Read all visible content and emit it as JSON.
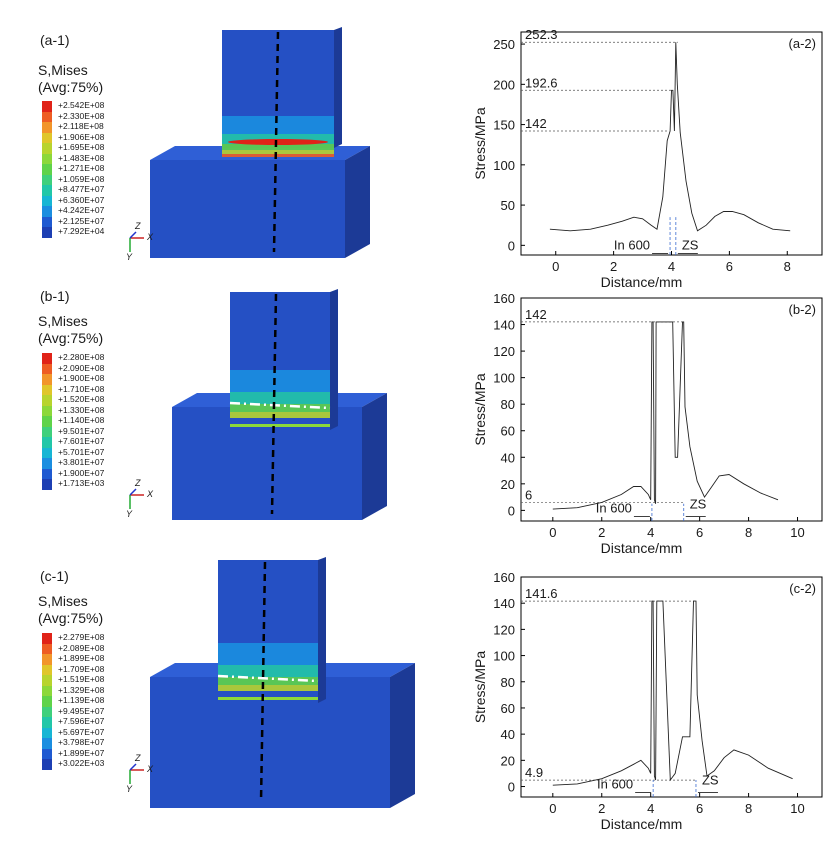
{
  "colors": {
    "contour": [
      "#1d3fb3",
      "#1f5ad1",
      "#1b8ee0",
      "#17b6d4",
      "#22c7a8",
      "#3fd07c",
      "#5fd34a",
      "#8cd83a",
      "#b8d42e",
      "#e0c62a",
      "#f2952a",
      "#ee5d23",
      "#e02318"
    ],
    "block_blue": "#2550c4",
    "block_side": "#1c3a96",
    "block_top": "#2f5fd6"
  },
  "fem_panels": [
    {
      "tag": "(a-1)",
      "title_line1": "S,Mises",
      "title_line2": "(Avg:75%)",
      "legend": [
        "+2.542E+08",
        "+2.330E+08",
        "+2.118E+08",
        "+1.906E+08",
        "+1.695E+08",
        "+1.483E+08",
        "+1.271E+08",
        "+1.059E+08",
        "+8.477E+07",
        "+6.360E+07",
        "+4.242E+07",
        "+2.125E+07",
        "+7.292E+04"
      ],
      "axes": {
        "z": "Z",
        "x": "X",
        "y": "Y"
      }
    },
    {
      "tag": "(b-1)",
      "title_line1": "S,Mises",
      "title_line2": "(Avg:75%)",
      "legend": [
        "+2.280E+08",
        "+2.090E+08",
        "+1.900E+08",
        "+1.710E+08",
        "+1.520E+08",
        "+1.330E+08",
        "+1.140E+08",
        "+9.501E+07",
        "+7.601E+07",
        "+5.701E+07",
        "+3.801E+07",
        "+1.900E+07",
        "+1.713E+03"
      ],
      "axes": {
        "z": "Z",
        "x": "X",
        "y": "Y"
      }
    },
    {
      "tag": "(c-1)",
      "title_line1": "S,Mises",
      "title_line2": "(Avg:75%)",
      "legend": [
        "+2.279E+08",
        "+2.089E+08",
        "+1.899E+08",
        "+1.709E+08",
        "+1.519E+08",
        "+1.329E+08",
        "+1.139E+08",
        "+9.495E+07",
        "+7.596E+07",
        "+5.697E+07",
        "+3.798E+07",
        "+1.899E+07",
        "+3.022E+03"
      ],
      "axes": {
        "z": "Z",
        "x": "X",
        "y": "Y"
      }
    }
  ],
  "chart_data": [
    {
      "type": "line",
      "tag": "(a-2)",
      "xlabel": "Distance/mm",
      "ylabel": "Stress/MPa",
      "xlim": [
        -1.2,
        9.2
      ],
      "ylim": [
        -12,
        265
      ],
      "xticks": [
        0,
        2,
        4,
        6,
        8
      ],
      "yticks": [
        0,
        50,
        100,
        150,
        200,
        250
      ],
      "annotations": [
        {
          "text": "252.3",
          "value": 252.3
        },
        {
          "text": "192.6",
          "value": 192.6
        },
        {
          "text": "142",
          "value": 142
        }
      ],
      "region_labels": {
        "left": "In 600",
        "right": "ZS"
      },
      "divider_x": [
        3.95,
        4.15
      ],
      "x": [
        -0.2,
        0.5,
        1.2,
        1.8,
        2.3,
        2.7,
        3.0,
        3.3,
        3.5,
        3.7,
        3.85,
        3.95,
        4.0,
        4.05,
        4.1,
        4.15,
        4.2,
        4.3,
        4.5,
        4.7,
        4.9,
        5.2,
        5.5,
        5.8,
        6.1,
        6.5,
        7.0,
        7.5,
        8.1
      ],
      "y": [
        20,
        18,
        20,
        25,
        30,
        35,
        33,
        25,
        20,
        60,
        130,
        142,
        192.6,
        192.6,
        142,
        252.3,
        200,
        140,
        80,
        40,
        18,
        25,
        36,
        42,
        42,
        38,
        28,
        20,
        18
      ]
    },
    {
      "type": "line",
      "tag": "(b-2)",
      "xlabel": "Distance/mm",
      "ylabel": "Stress/MPa",
      "xlim": [
        -1.3,
        11
      ],
      "ylim": [
        -8,
        160
      ],
      "xticks": [
        0,
        2,
        4,
        6,
        8,
        10
      ],
      "yticks": [
        0,
        20,
        40,
        60,
        80,
        100,
        120,
        140,
        160
      ],
      "annotations": [
        {
          "text": "142",
          "value": 142
        },
        {
          "text": "6",
          "value": 6
        }
      ],
      "region_labels": {
        "left": "In 600",
        "right": "ZS"
      },
      "divider_x": [
        4.05,
        5.35
      ],
      "x": [
        0,
        1,
        2,
        2.8,
        3.3,
        3.6,
        3.9,
        4.0,
        4.05,
        4.1,
        4.15,
        4.2,
        4.22,
        4.5,
        4.9,
        5.0,
        5.1,
        5.3,
        5.35,
        5.4,
        5.6,
        5.9,
        6.2,
        6.5,
        6.8,
        7.2,
        7.8,
        8.5,
        9.2
      ],
      "y": [
        1,
        2,
        6,
        12,
        18,
        18,
        12,
        8,
        142,
        142,
        8,
        5,
        142,
        142,
        142,
        40,
        40,
        142,
        142,
        78,
        48,
        22,
        10,
        18,
        26,
        27,
        20,
        13,
        8
      ]
    },
    {
      "type": "line",
      "tag": "(c-2)",
      "xlabel": "Distance/mm",
      "ylabel": "Stress/MPa",
      "xlim": [
        -1.3,
        11
      ],
      "ylim": [
        -8,
        160
      ],
      "xticks": [
        0,
        2,
        4,
        6,
        8,
        10
      ],
      "yticks": [
        0,
        20,
        40,
        60,
        80,
        100,
        120,
        140,
        160
      ],
      "annotations": [
        {
          "text": "141.6",
          "value": 141.6
        },
        {
          "text": "4.9",
          "value": 4.9
        }
      ],
      "region_labels": {
        "left": "In 600",
        "right": "ZS"
      },
      "divider_x": [
        4.1,
        5.85
      ],
      "x": [
        0,
        1,
        2,
        2.8,
        3.3,
        3.6,
        3.9,
        4.0,
        4.05,
        4.1,
        4.15,
        4.2,
        4.25,
        4.5,
        4.8,
        5.0,
        5.3,
        5.6,
        5.75,
        5.8,
        5.85,
        5.9,
        6.1,
        6.3,
        6.6,
        7.0,
        7.4,
        8.0,
        8.8,
        9.8
      ],
      "y": [
        1,
        2,
        6,
        12,
        17,
        20,
        14,
        10,
        141.6,
        141.6,
        8,
        5,
        141.6,
        141.6,
        5,
        10,
        38,
        38,
        141.6,
        141.6,
        141.6,
        70,
        35,
        8,
        12,
        22,
        28,
        24,
        14,
        6
      ]
    }
  ]
}
